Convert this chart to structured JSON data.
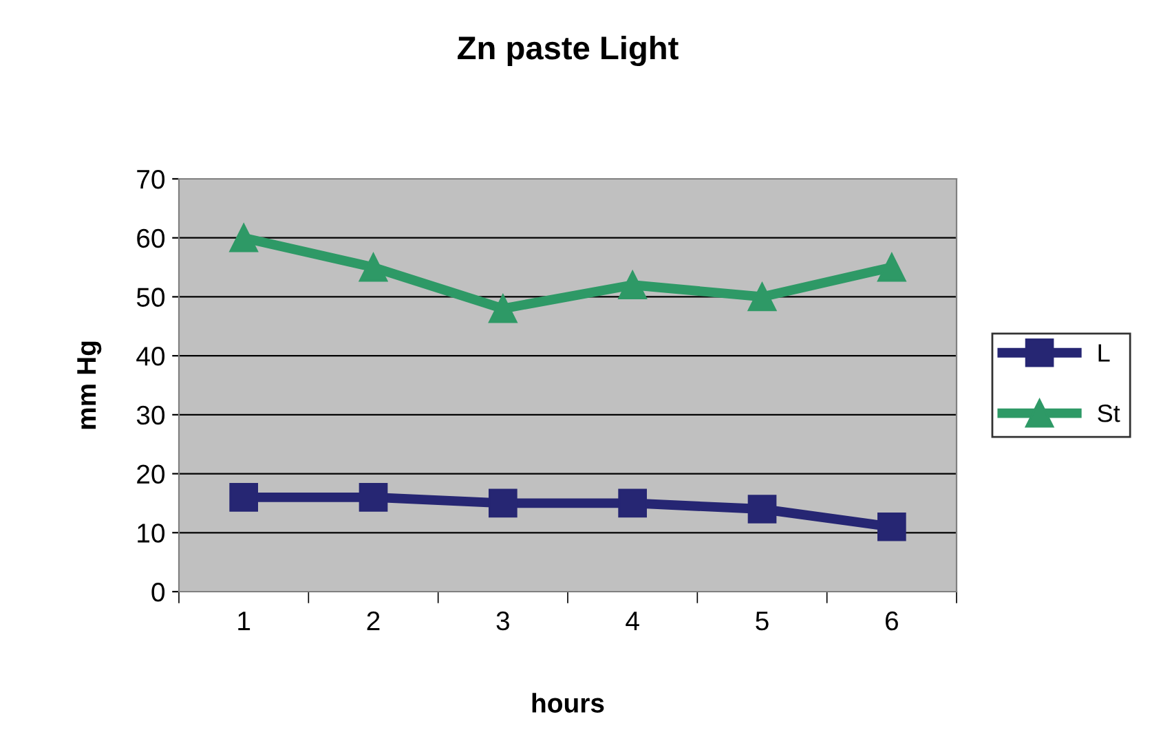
{
  "chart_data": {
    "type": "line",
    "title": "Zn paste Light",
    "xlabel": "hours",
    "ylabel": "mm Hg",
    "categories": [
      "1",
      "2",
      "3",
      "4",
      "5",
      "6"
    ],
    "series": [
      {
        "name": "L",
        "color": "#262673",
        "marker": "square",
        "values": [
          16,
          16,
          15,
          15,
          14,
          11
        ]
      },
      {
        "name": "St",
        "color": "#2e9966",
        "marker": "triangle",
        "values": [
          60,
          55,
          48,
          52,
          50,
          55
        ]
      }
    ],
    "ylim": [
      0,
      70
    ],
    "yticks": [
      0,
      10,
      20,
      30,
      40,
      50,
      60,
      70
    ],
    "grid": "y",
    "legend": "right",
    "line_style": "solid"
  }
}
